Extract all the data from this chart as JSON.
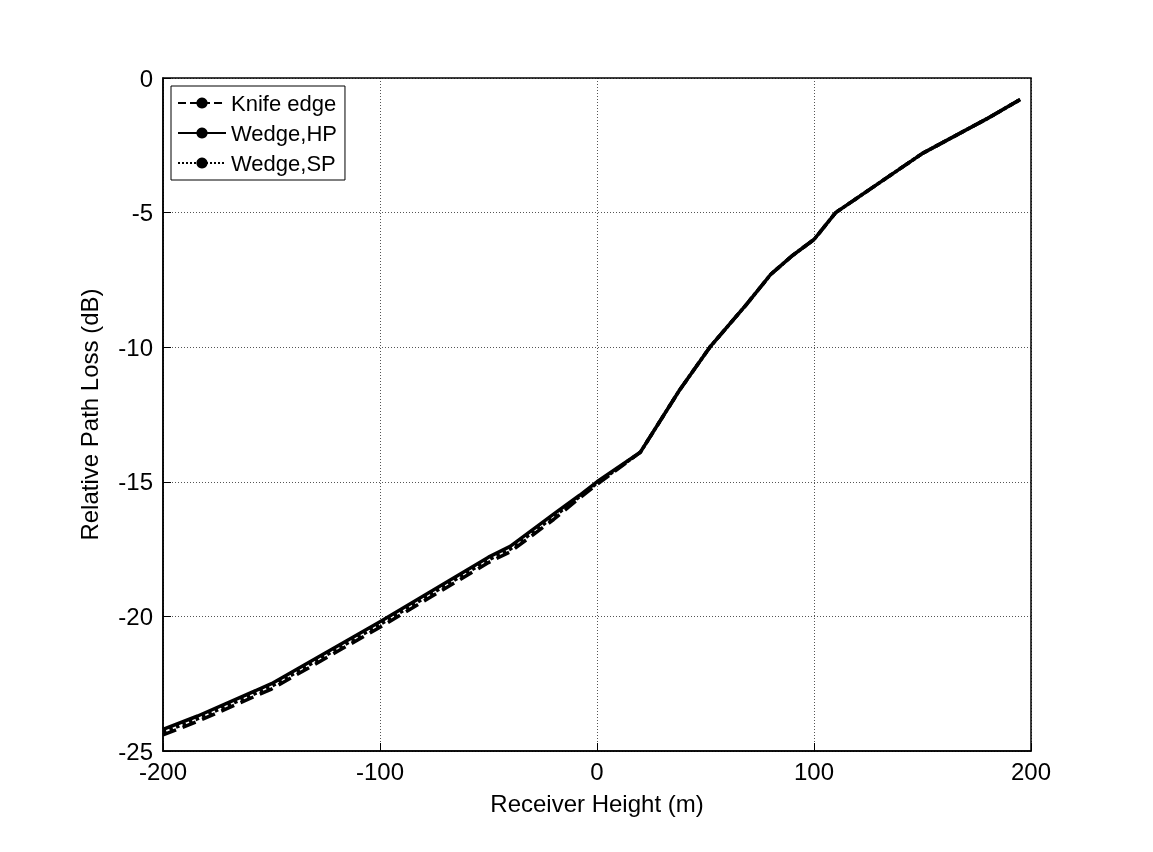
{
  "chart_data": {
    "type": "line",
    "xlabel": "Receiver Height (m)",
    "ylabel": "Relative Path Loss (dB)",
    "xlim": [
      -200,
      200
    ],
    "xticks": [
      -200,
      -100,
      0,
      100,
      200
    ],
    "ylim": [
      -25,
      0
    ],
    "yticks": [
      -25,
      -20,
      -15,
      -10,
      -5,
      0
    ],
    "grid": true,
    "legend": "top left",
    "marker": "none",
    "series": [
      {
        "name": "Knife edge",
        "color": "#000000",
        "line_style": "dashed",
        "x": [
          -200,
          -184,
          -150,
          -100,
          -50,
          -40,
          -20,
          -8,
          0,
          20,
          38,
          52,
          69,
          80,
          90,
          100,
          110,
          150,
          180,
          195
        ],
        "values": [
          -24.4,
          -23.9,
          -22.7,
          -20.4,
          -18.0,
          -17.6,
          -16.4,
          -15.6,
          -15.1,
          -13.9,
          -11.6,
          -10.0,
          -8.4,
          -7.3,
          -6.6,
          -6.0,
          -5.0,
          -2.8,
          -1.5,
          -0.8
        ]
      },
      {
        "name": "Wedge,HP",
        "color": "#000000",
        "line_style": "solid",
        "x": [
          -200,
          -184,
          -150,
          -100,
          -50,
          -40,
          -20,
          -8,
          0,
          20,
          38,
          52,
          69,
          80,
          90,
          100,
          110,
          150,
          180,
          195
        ],
        "values": [
          -24.2,
          -23.7,
          -22.5,
          -20.2,
          -17.8,
          -17.4,
          -16.2,
          -15.5,
          -15.0,
          -13.9,
          -11.6,
          -10.0,
          -8.4,
          -7.3,
          -6.6,
          -6.0,
          -5.0,
          -2.8,
          -1.5,
          -0.8
        ]
      },
      {
        "name": "Wedge,SP",
        "color": "#000000",
        "line_style": "dotted",
        "x": [
          -200,
          -184,
          -150,
          -100,
          -50,
          -40,
          -20,
          -8,
          0,
          20,
          38,
          52,
          69,
          80,
          90,
          100,
          110,
          150,
          180,
          195
        ],
        "values": [
          -24.3,
          -23.8,
          -22.6,
          -20.3,
          -17.9,
          -17.5,
          -16.3,
          -15.55,
          -15.05,
          -13.9,
          -11.6,
          -10.0,
          -8.4,
          -7.3,
          -6.6,
          -6.0,
          -5.0,
          -2.8,
          -1.5,
          -0.8
        ]
      }
    ]
  }
}
